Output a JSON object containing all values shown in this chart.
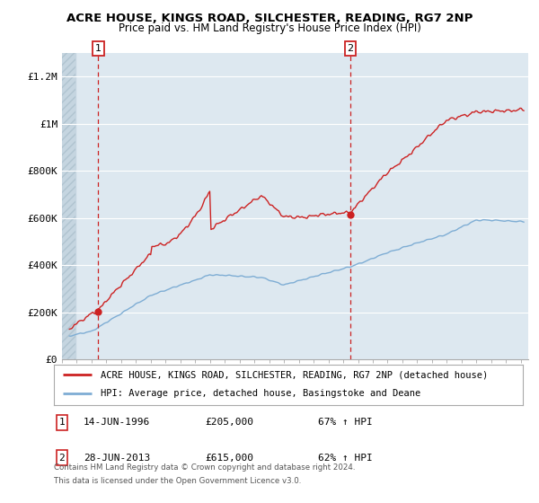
{
  "title1": "ACRE HOUSE, KINGS ROAD, SILCHESTER, READING, RG7 2NP",
  "title2": "Price paid vs. HM Land Registry's House Price Index (HPI)",
  "red_label": "ACRE HOUSE, KINGS ROAD, SILCHESTER, READING, RG7 2NP (detached house)",
  "blue_label": "HPI: Average price, detached house, Basingstoke and Deane",
  "annotation1_date": "14-JUN-1996",
  "annotation1_price": "£205,000",
  "annotation1_hpi": "67% ↑ HPI",
  "annotation2_date": "28-JUN-2013",
  "annotation2_price": "£615,000",
  "annotation2_hpi": "62% ↑ HPI",
  "footnote1": "Contains HM Land Registry data © Crown copyright and database right 2024.",
  "footnote2": "This data is licensed under the Open Government Licence v3.0.",
  "ylim": [
    0,
    1300000
  ],
  "xlim_start": 1994.0,
  "xlim_end": 2025.5,
  "purchase1_year": 1996.45,
  "purchase1_price": 205000,
  "purchase2_year": 2013.49,
  "purchase2_price": 615000,
  "red_color": "#cc2222",
  "blue_color": "#7eadd4",
  "bg_color": "#dde8f0",
  "hatch_end": 1994.92
}
